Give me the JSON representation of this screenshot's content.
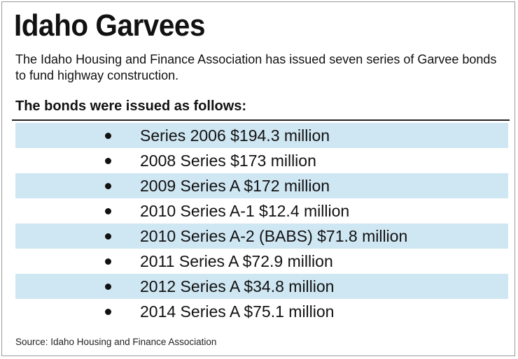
{
  "title": "Idaho Garvees",
  "intro": "The Idaho Housing and Finance Association has issued seven series of Garvee bonds to fund highway construction.",
  "list_heading": "The bonds were issued as follows:",
  "bonds": [
    "Series 2006 $194.3 million",
    "2008 Series $173 million",
    "2009 Series A $172 million",
    "2010 Series A-1 $12.4 million",
    "2010 Series A-2 (BABS) $71.8 million",
    "2011 Series A $72.9 million",
    "2012 Series A $34.8 million",
    "2014 Series A $75.1 million"
  ],
  "source": "Source: Idaho Housing and Finance Association",
  "colors": {
    "row_shade": "#cfe7f3",
    "text": "#111111",
    "border": "#9a9a9a"
  }
}
